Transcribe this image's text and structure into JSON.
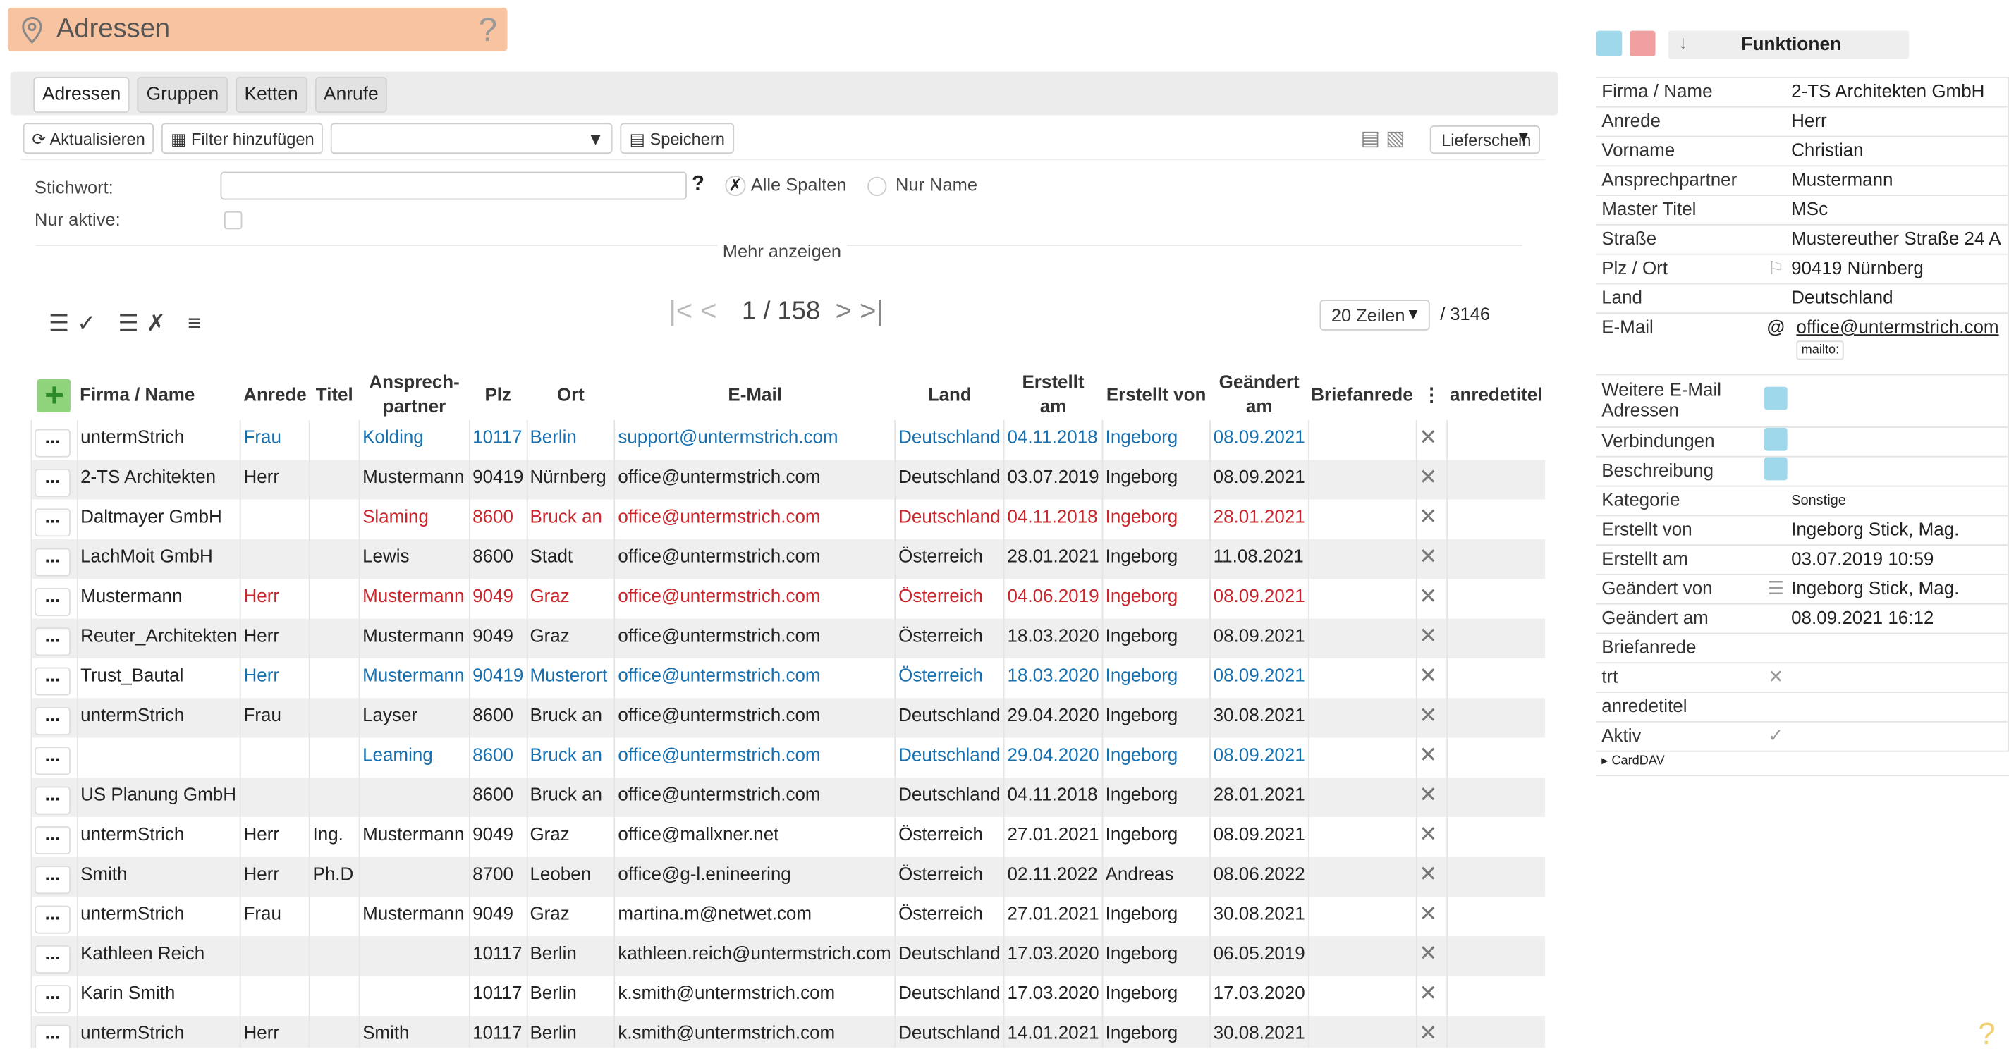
{
  "header": {
    "title": "Adressen",
    "help": "?"
  },
  "tabs": [
    "Adressen",
    "Gruppen",
    "Ketten",
    "Anrufe"
  ],
  "toolbar": {
    "refresh": "Aktualisieren",
    "add_filter": "Filter hinzufügen",
    "save": "Speichern",
    "report": "Lieferschein"
  },
  "search": {
    "keyword_label": "Stichwort:",
    "help": "?",
    "active_label": "Nur aktive:",
    "all_columns": "Alle Spalten",
    "name_only": "Nur Name",
    "more": "Mehr anzeigen"
  },
  "pager": {
    "page": "1 / 158",
    "rows_per_page": "20 Zeilen",
    "total": "/ 3146"
  },
  "table": {
    "headers": [
      "Firma / Name",
      "Anrede",
      "Titel",
      "Ansprech-\npartner",
      "Plz",
      "Ort",
      "E-Mail",
      "Land",
      "Erstellt\nam",
      "Erstellt von",
      "Geändert\nam",
      "Briefanrede",
      "anredetitel"
    ],
    "row_button": "...",
    "rows": [
      {
        "color": "#1670b0",
        "cells": [
          "untermStrich",
          "Frau",
          null,
          "Kolding",
          "10117",
          "Berlin",
          "support@untermstrich.com",
          "Deutschland",
          "04.11.2018",
          "Ingeborg",
          "08.09.2021"
        ]
      },
      {
        "cells": [
          "2-TS Architekten",
          "Herr",
          null,
          "Mustermann",
          "90419",
          "Nürnberg",
          "office@untermstrich.com",
          "Deutschland",
          "03.07.2019",
          "Ingeborg",
          "08.09.2021"
        ]
      },
      {
        "color": "#c8252c",
        "cells": [
          "Daltmayer GmbH",
          null,
          null,
          "Slaming",
          "8600",
          "Bruck an",
          "office@untermstrich.com",
          "Deutschland",
          "04.11.2018",
          "Ingeborg",
          "28.01.2021"
        ]
      },
      {
        "cells": [
          "LachMoit GmbH",
          null,
          null,
          "Lewis",
          "8600",
          "Stadt",
          "office@untermstrich.com",
          "Österreich",
          "28.01.2021",
          "Ingeborg",
          "11.08.2021"
        ]
      },
      {
        "color": "#c8252c",
        "cells": [
          "Mustermann",
          "Herr",
          null,
          "Mustermann",
          "9049",
          "Graz",
          "office@untermstrich.com",
          "Österreich",
          "04.06.2019",
          "Ingeborg",
          "08.09.2021"
        ]
      },
      {
        "cells": [
          "Reuter_Architekten",
          "Herr",
          null,
          "Mustermann",
          "9049",
          "Graz",
          "office@untermstrich.com",
          "Österreich",
          "18.03.2020",
          "Ingeborg",
          "08.09.2021"
        ]
      },
      {
        "color": "#1670b0",
        "cells": [
          "Trust_Bautal",
          "Herr",
          null,
          "Mustermann",
          "90419",
          "Musterort",
          "office@untermstrich.com",
          "Österreich",
          "18.03.2020",
          "Ingeborg",
          "08.09.2021"
        ]
      },
      {
        "cells": [
          "untermStrich",
          "Frau",
          null,
          "Layser",
          "8600",
          "Bruck an",
          "office@untermstrich.com",
          "Deutschland",
          "29.04.2020",
          "Ingeborg",
          "30.08.2021"
        ]
      },
      {
        "color": "#1670b0",
        "cells": [
          null,
          null,
          null,
          "Leaming",
          "8600",
          "Bruck an",
          "office@untermstrich.com",
          "Deutschland",
          "29.04.2020",
          "Ingeborg",
          "08.09.2021"
        ]
      },
      {
        "cells": [
          "US Planung GmbH",
          null,
          null,
          null,
          "8600",
          "Bruck an",
          "office@untermstrich.com",
          "Deutschland",
          "04.11.2018",
          "Ingeborg",
          "28.01.2021"
        ]
      },
      {
        "cells": [
          "untermStrich",
          "Herr",
          "Ing.",
          "Mustermann",
          "9049",
          "Graz",
          "office@mallxner.net",
          "Österreich",
          "27.01.2021",
          "Ingeborg",
          "08.09.2021"
        ]
      },
      {
        "cells": [
          "Smith",
          "Herr",
          "Ph.D",
          null,
          "8700",
          "Leoben",
          "office@g-l.enineering",
          "Österreich",
          "02.11.2022",
          "Andreas",
          "08.06.2022"
        ]
      },
      {
        "cells": [
          "untermStrich",
          "Frau",
          null,
          "Mustermann",
          "9049",
          "Graz",
          "martina.m@netwet.com",
          "Österreich",
          "27.01.2021",
          "Ingeborg",
          "30.08.2021"
        ]
      },
      {
        "cells": [
          "Kathleen Reich",
          null,
          null,
          null,
          "10117",
          "Berlin",
          "kathleen.reich@untermstrich.com",
          "Deutschland",
          "17.03.2020",
          "Ingeborg",
          "06.05.2019"
        ]
      },
      {
        "cells": [
          "Karin Smith",
          null,
          null,
          null,
          "10117",
          "Berlin",
          "k.smith@untermstrich.com",
          "Deutschland",
          "17.03.2020",
          "Ingeborg",
          "17.03.2020"
        ]
      },
      {
        "cells": [
          "untermStrich",
          "Herr",
          null,
          "Smith",
          "10117",
          "Berlin",
          "k.smith@untermstrich.com",
          "Deutschland",
          "14.01.2021",
          "Ingeborg",
          "30.08.2021"
        ]
      }
    ]
  },
  "panel": {
    "title": "Funktionen",
    "mailto": "mailto:",
    "carddav": "▸ CardDAV",
    "fields": [
      {
        "label": "Firma / Name",
        "value": "2-TS Architekten GmbH"
      },
      {
        "label": "Anrede",
        "value": "Herr"
      },
      {
        "label": "Vorname",
        "value": "Christian"
      },
      {
        "label": "Ansprechpartner",
        "value": "Mustermann"
      },
      {
        "label": "Master Titel",
        "value": "MSc"
      },
      {
        "label": "Straße",
        "value": "Mustereuther Straße 24 A"
      },
      {
        "label": "Plz / Ort",
        "value": "90419 Nürnberg"
      },
      {
        "label": "Land",
        "value": "Deutschland"
      },
      {
        "label": "E-Mail",
        "value": "office@untermstrich.com"
      },
      {
        "label": "Weitere E-Mail Adressen"
      },
      {
        "label": "Verbindungen"
      },
      {
        "label": "Beschreibung"
      },
      {
        "label": "Kategorie",
        "value": "Sonstige"
      },
      {
        "label": "Erstellt von",
        "value": "Ingeborg Stick, Mag."
      },
      {
        "label": "Erstellt am",
        "value": "03.07.2019 10:59"
      },
      {
        "label": "Geändert von",
        "value": "Ingeborg Stick, Mag."
      },
      {
        "label": "Geändert am",
        "value": "08.09.2021 16:12"
      },
      {
        "label": "Briefanrede"
      },
      {
        "label": "trt"
      },
      {
        "label": "anredetitel"
      },
      {
        "label": "Aktiv"
      }
    ]
  }
}
